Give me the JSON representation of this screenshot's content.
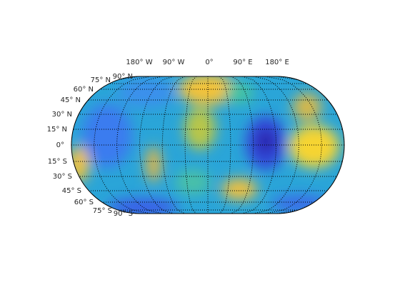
{
  "map": {
    "longitude_labels": [
      "180° W",
      "90° W",
      "0°",
      "90° E",
      "180° E"
    ],
    "latitude_labels": [
      "90° N",
      "75° N",
      "60° N",
      "45° N",
      "30° N",
      "15° N",
      "0°",
      "15° S",
      "30° S",
      "45° S",
      "60° S",
      "75° S",
      "90° S"
    ]
  }
}
